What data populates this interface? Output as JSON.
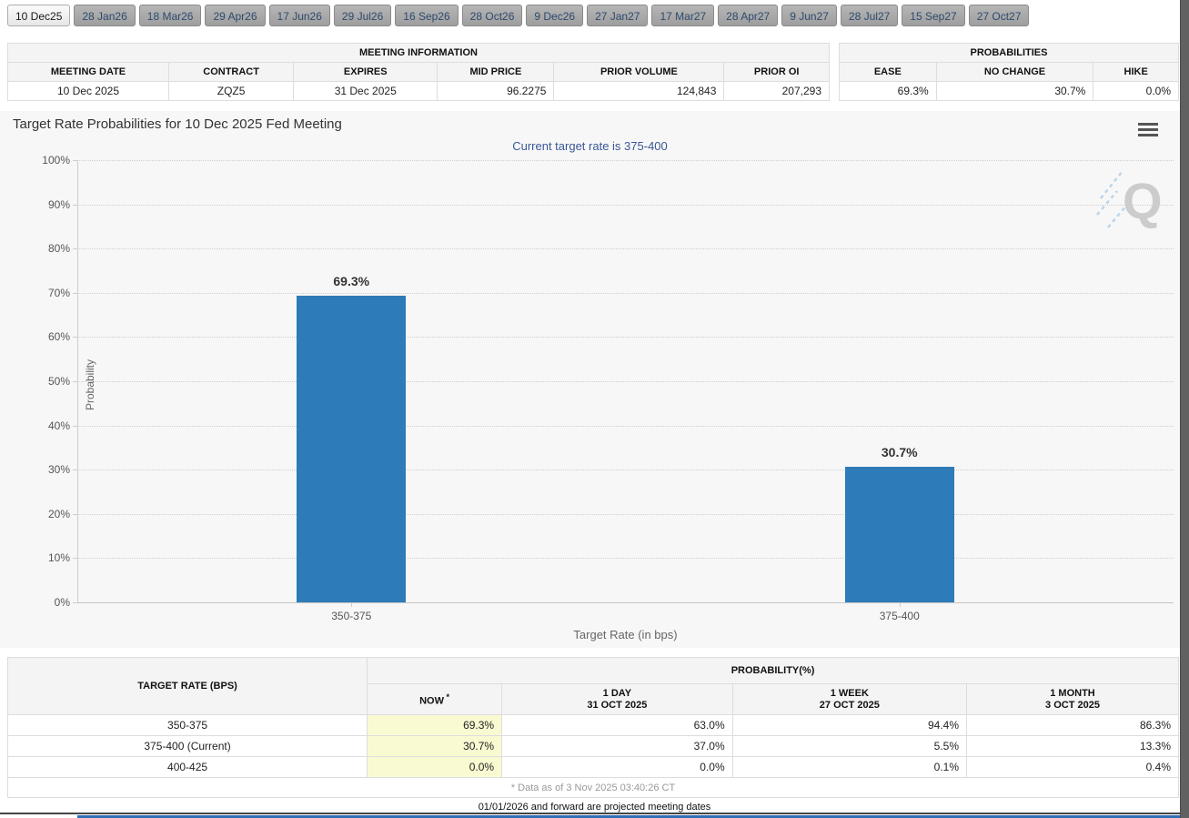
{
  "tabs": {
    "items": [
      "10 Dec25",
      "28 Jan26",
      "18 Mar26",
      "29 Apr26",
      "17 Jun26",
      "29 Jul26",
      "16 Sep26",
      "28 Oct26",
      "9 Dec26",
      "27 Jan27",
      "17 Mar27",
      "28 Apr27",
      "9 Jun27",
      "28 Jul27",
      "15 Sep27",
      "27 Oct27"
    ],
    "active_index": 0
  },
  "meeting_info": {
    "title": "MEETING INFORMATION",
    "columns": [
      "MEETING DATE",
      "CONTRACT",
      "EXPIRES",
      "MID PRICE",
      "PRIOR VOLUME",
      "PRIOR OI"
    ],
    "row": [
      "10 Dec 2025",
      "ZQZ5",
      "31 Dec 2025",
      "96.2275",
      "124,843",
      "207,293"
    ]
  },
  "probabilities": {
    "title": "PROBABILITIES",
    "columns": [
      "EASE",
      "NO CHANGE",
      "HIKE"
    ],
    "row": [
      "69.3%",
      "30.7%",
      "0.0%"
    ]
  },
  "chart_data": {
    "type": "bar",
    "title": "Target Rate Probabilities for 10 Dec 2025 Fed Meeting",
    "subtitle": "Current target rate is 375-400",
    "categories": [
      "350-375",
      "375-400"
    ],
    "values": [
      69.3,
      30.7
    ],
    "data_labels": [
      "69.3%",
      "30.7%"
    ],
    "xlabel": "Target Rate (in bps)",
    "ylabel": "Probability",
    "ylim": [
      0,
      100
    ],
    "ytick_step": 10,
    "ytick_suffix": "%",
    "bar_color": "#2d7bb8",
    "grid": "dotted-horizontal",
    "legend": "none"
  },
  "probability_table": {
    "target_rate_header": "TARGET RATE (BPS)",
    "group_header": "PROBABILITY(%)",
    "columns": [
      {
        "label": "NOW",
        "sup": "*",
        "sub": ""
      },
      {
        "label": "1 DAY",
        "sup": "",
        "sub": "31 OCT 2025"
      },
      {
        "label": "1 WEEK",
        "sup": "",
        "sub": "27 OCT 2025"
      },
      {
        "label": "1 MONTH",
        "sup": "",
        "sub": "3 OCT 2025"
      }
    ],
    "rows": [
      {
        "target_rate": "350-375",
        "values": [
          "69.3%",
          "63.0%",
          "94.4%",
          "86.3%"
        ]
      },
      {
        "target_rate": "375-400 (Current)",
        "values": [
          "30.7%",
          "37.0%",
          "5.5%",
          "13.3%"
        ]
      },
      {
        "target_rate": "400-425",
        "values": [
          "0.0%",
          "0.0%",
          "0.1%",
          "0.4%"
        ]
      }
    ],
    "footnote": "* Data as of 3 Nov 2025 03:40:26 CT"
  },
  "footer": {
    "projected_note": "01/01/2026 and forward are projected meeting dates"
  },
  "icons": {
    "chart_menu": "hamburger-icon",
    "watermark": "quikstrike-q"
  },
  "colors": {
    "bar": "#2d7bb8",
    "now_highlight": "#fafad2",
    "subtitle_text": "#3a5795"
  }
}
